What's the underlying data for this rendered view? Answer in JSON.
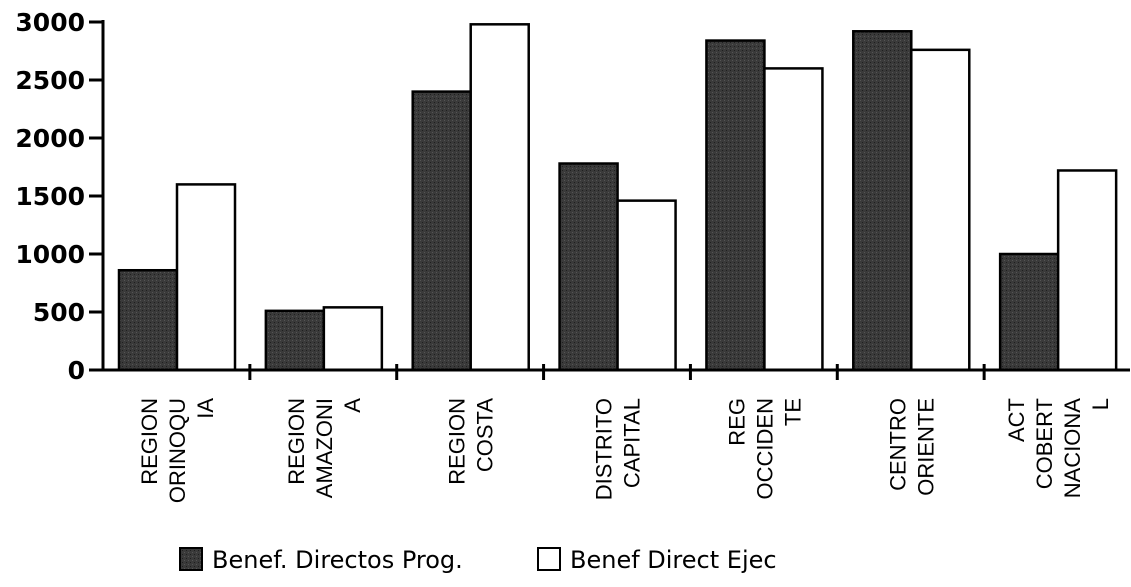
{
  "chart_data": {
    "type": "bar",
    "categories": [
      [
        "REGION",
        "ORINOQU",
        "IA"
      ],
      [
        "REGION",
        "AMAZONI",
        "A"
      ],
      [
        "REGION",
        "COSTA"
      ],
      [
        "DISTRITO",
        "CAPITAL"
      ],
      [
        "REG",
        "OCCIDEN",
        "TE"
      ],
      [
        "CENTRO",
        "ORIENTE"
      ],
      [
        "ACT",
        "COBERT",
        "NACIONA",
        "L"
      ]
    ],
    "series": [
      {
        "name": "Benef. Directos Prog.",
        "color": "#2f2f2f",
        "values": [
          860,
          510,
          2400,
          1780,
          2840,
          2920,
          1000
        ]
      },
      {
        "name": "Benef Direct Ejec",
        "color": "#ffffff",
        "values": [
          1600,
          540,
          2980,
          1460,
          2600,
          2760,
          1720
        ]
      }
    ],
    "ylim": [
      0,
      3000
    ],
    "yticks": [
      "0",
      "500",
      "1000",
      "1500",
      "2000",
      "2500",
      "3000"
    ],
    "grid": false,
    "legend_position": "bottom"
  }
}
